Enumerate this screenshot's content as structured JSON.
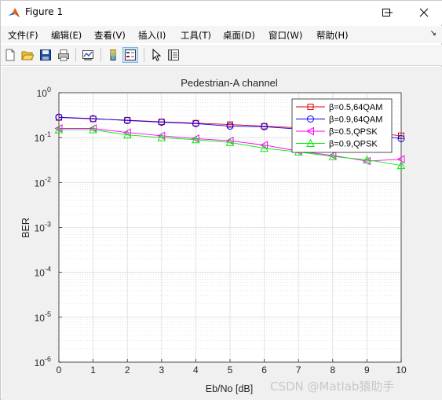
{
  "window": {
    "title": "Figure 1"
  },
  "menus": [
    "文件(F)",
    "编辑(E)",
    "查看(V)",
    "插入(I)",
    "工具(T)",
    "桌面(D)",
    "窗口(W)",
    "帮助(H)"
  ],
  "toolbar_icons": [
    "new-figure-icon",
    "open-file-icon",
    "save-icon",
    "print-icon",
    "link-plot-icon",
    "colorbar-icon",
    "legend-icon",
    "edit-plot-icon",
    "property-inspector-icon"
  ],
  "watermark": "CSDN @Matlab猿助手",
  "colors": {
    "red": "#e00000",
    "blue": "#0000ff",
    "magenta": "#ff00ff",
    "green": "#00ee00"
  },
  "chart_data": {
    "type": "line",
    "title": "Pedestrian-A channel",
    "xlabel": "Eb/No [dB]",
    "ylabel": "BER",
    "y_scale": "log",
    "xlim": [
      0,
      10
    ],
    "ylim": [
      1e-06,
      1
    ],
    "xticks": [
      "0",
      "1",
      "2",
      "3",
      "4",
      "5",
      "6",
      "7",
      "8",
      "9",
      "10"
    ],
    "yticks": [
      {
        "base": "10",
        "exp": "0"
      },
      {
        "base": "10",
        "exp": "-1"
      },
      {
        "base": "10",
        "exp": "-2"
      },
      {
        "base": "10",
        "exp": "-3"
      },
      {
        "base": "10",
        "exp": "-4"
      },
      {
        "base": "10",
        "exp": "-5"
      },
      {
        "base": "10",
        "exp": "-6"
      }
    ],
    "grid": true,
    "legend_position": "top-right",
    "x": [
      0,
      1,
      2,
      3,
      4,
      5,
      6,
      7,
      8,
      9,
      10
    ],
    "series": [
      {
        "name": "β=0.5,64QAM",
        "color": "#e00000",
        "marker": "square",
        "values": [
          0.28,
          0.26,
          0.245,
          0.225,
          0.21,
          0.195,
          0.18,
          0.165,
          0.15,
          0.13,
          0.11
        ]
      },
      {
        "name": "β=0.9,64QAM",
        "color": "#0000ff",
        "marker": "circle",
        "values": [
          0.285,
          0.265,
          0.24,
          0.22,
          0.205,
          0.18,
          0.175,
          0.155,
          0.135,
          0.12,
          0.095
        ]
      },
      {
        "name": "β=0.5,QPSK",
        "color": "#ff00ff",
        "marker": "triangle-left",
        "values": [
          0.16,
          0.16,
          0.13,
          0.11,
          0.095,
          0.085,
          0.068,
          0.05,
          0.04,
          0.03,
          0.033
        ]
      },
      {
        "name": "β=0.9,QPSK",
        "color": "#00ee00",
        "marker": "triangle-up",
        "values": [
          0.15,
          0.15,
          0.115,
          0.1,
          0.09,
          0.078,
          0.058,
          0.048,
          0.038,
          0.032,
          0.024
        ]
      }
    ]
  }
}
